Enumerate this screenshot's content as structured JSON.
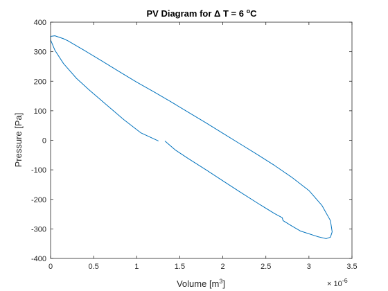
{
  "chart_data": {
    "type": "line",
    "title": "PV Diagram for Δ T = 6 °C",
    "title_parts": {
      "prefix": "PV Diagram for ",
      "delta": "Δ",
      "mid": " T = 6 ",
      "degree": "o",
      "unit": "C"
    },
    "xlabel": "Volume [m3]",
    "xlabel_parts": {
      "text": "Volume [m",
      "sup": "3",
      "close": "]"
    },
    "ylabel": "Pressure [Pa]",
    "x_exponent": {
      "base": "× 10",
      "exp": "-6"
    },
    "xlim": [
      0,
      3.5
    ],
    "ylim": [
      -400,
      400
    ],
    "xticks": [
      0,
      0.5,
      1,
      1.5,
      2,
      2.5,
      3,
      3.5
    ],
    "xtick_labels": [
      "0",
      "0.5",
      "1",
      "1.5",
      "2",
      "2.5",
      "3",
      "3.5"
    ],
    "yticks": [
      -400,
      -300,
      -200,
      -100,
      0,
      100,
      200,
      300,
      400
    ],
    "ytick_labels": [
      "-400",
      "-300",
      "-200",
      "-100",
      "0",
      "100",
      "200",
      "300",
      "400"
    ],
    "grid": false,
    "line_color": "#0072BD",
    "series": [
      {
        "points": [
          [
            1.25,
            -2
          ],
          [
            1.05,
            25
          ],
          [
            0.85,
            70
          ],
          [
            0.65,
            120
          ],
          [
            0.45,
            170
          ],
          [
            0.3,
            210
          ],
          [
            0.15,
            260
          ],
          [
            0.05,
            305
          ],
          [
            0.0,
            340
          ],
          [
            0.0,
            352
          ],
          [
            0.05,
            354
          ],
          [
            0.15,
            344
          ],
          [
            0.2,
            337
          ],
          [
            0.4,
            303
          ],
          [
            0.6,
            268
          ],
          [
            0.8,
            232
          ],
          [
            1.0,
            197
          ],
          [
            1.2,
            164
          ],
          [
            1.4,
            130
          ],
          [
            1.6,
            95
          ],
          [
            1.8,
            60
          ],
          [
            2.0,
            24
          ],
          [
            2.2,
            -12
          ],
          [
            2.4,
            -48
          ],
          [
            2.6,
            -85
          ],
          [
            2.8,
            -125
          ],
          [
            3.0,
            -170
          ],
          [
            3.15,
            -220
          ],
          [
            3.25,
            -272
          ],
          [
            3.27,
            -310
          ],
          [
            3.25,
            -328
          ],
          [
            3.2,
            -333
          ],
          [
            3.1,
            -326
          ],
          [
            2.9,
            -307
          ],
          [
            2.8,
            -290
          ],
          [
            2.7,
            -272
          ],
          [
            2.69,
            -262
          ],
          [
            2.6,
            -248
          ],
          [
            2.4,
            -212
          ],
          [
            2.2,
            -175
          ],
          [
            2.0,
            -137
          ],
          [
            1.8,
            -99
          ],
          [
            1.6,
            -62
          ],
          [
            1.45,
            -33
          ],
          [
            1.33,
            -3
          ]
        ]
      }
    ]
  }
}
